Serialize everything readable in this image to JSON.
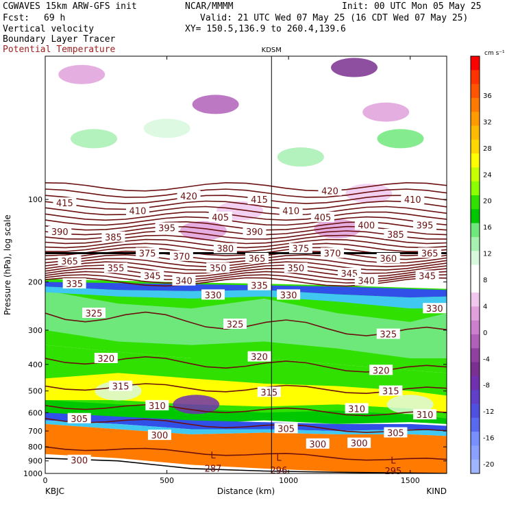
{
  "header": {
    "model": "CGWAVES 15km ARW-GFS init",
    "fcst_label": "Fcst:",
    "fcst_value": "69 h",
    "field1": "Vertical velocity",
    "field2": "Boundary Layer Tracer",
    "field3": "Potential Temperature",
    "org": "NCAR/MMMM",
    "init": "Init: 00 UTC Mon 05 May 25",
    "valid": "Valid: 21 UTC Wed 07 May 25 (16 CDT Wed 07 May 25)",
    "xy": "XY= 150.5,136.9 to 260.4,139.6"
  },
  "colors": {
    "contour": "#6b0f0f",
    "tropopause": "#000000"
  },
  "chart_data": {
    "type": "heatmap",
    "xlabel": "Distance (km)",
    "ylabel": "Pressure (hPa), log scale",
    "x_ticks": [
      0,
      500,
      1000,
      1500
    ],
    "y_ticks": [
      100,
      200,
      300,
      400,
      500,
      600,
      700,
      800,
      900,
      1000
    ],
    "xlim": [
      0,
      1650
    ],
    "ylim_hpa": [
      1000,
      30
    ],
    "y_scale": "log",
    "endpoints": [
      "KBJC",
      "KIND"
    ],
    "station": {
      "name": "KDSM",
      "x_km": 930
    },
    "colorbar": {
      "unit": "cm s⁻¹",
      "labels": [
        "36",
        "32",
        "28",
        "24",
        "20",
        "16",
        "12",
        "8",
        "4",
        "0",
        "-4",
        "-8",
        "-12",
        "-16",
        "-20"
      ],
      "colors": [
        "#ff0000",
        "#ff3300",
        "#ff5500",
        "#ff7a00",
        "#ff9a00",
        "#ffbb00",
        "#ffd700",
        "#ffff00",
        "#c8ff00",
        "#8cff00",
        "#30e000",
        "#00c800",
        "#6ee87a",
        "#a6f0b0",
        "#d8f8dc",
        "#ffffff",
        "#ffffff",
        "#f0c8ee",
        "#e0a0dc",
        "#cc7fcc",
        "#b060b8",
        "#9040a0",
        "#7a3090",
        "#7030b0",
        "#6040c8",
        "#5050e0",
        "#5a6af0",
        "#7890ff",
        "#8ca0ff",
        "#a0b4ff"
      ]
    },
    "theta_labels": [
      {
        "v": "415",
        "x": 80,
        "p": 103
      },
      {
        "v": "420",
        "x": 590,
        "p": 97
      },
      {
        "v": "415",
        "x": 880,
        "p": 100
      },
      {
        "v": "420",
        "x": 1170,
        "p": 93
      },
      {
        "v": "410",
        "x": 1510,
        "p": 100
      },
      {
        "v": "410",
        "x": 380,
        "p": 110
      },
      {
        "v": "405",
        "x": 720,
        "p": 116
      },
      {
        "v": "410",
        "x": 1010,
        "p": 110
      },
      {
        "v": "405",
        "x": 1140,
        "p": 116
      },
      {
        "v": "400",
        "x": 1320,
        "p": 124
      },
      {
        "v": "395",
        "x": 1560,
        "p": 124
      },
      {
        "v": "390",
        "x": 60,
        "p": 131
      },
      {
        "v": "385",
        "x": 280,
        "p": 137
      },
      {
        "v": "395",
        "x": 500,
        "p": 127
      },
      {
        "v": "390",
        "x": 860,
        "p": 131
      },
      {
        "v": "385",
        "x": 1440,
        "p": 134
      },
      {
        "v": "380",
        "x": 740,
        "p": 151
      },
      {
        "v": "375",
        "x": 420,
        "p": 157
      },
      {
        "v": "375",
        "x": 1050,
        "p": 151
      },
      {
        "v": "370",
        "x": 1180,
        "p": 157
      },
      {
        "v": "365",
        "x": 1580,
        "p": 157
      },
      {
        "v": "370",
        "x": 560,
        "p": 161
      },
      {
        "v": "365",
        "x": 100,
        "p": 168
      },
      {
        "v": "365",
        "x": 870,
        "p": 164
      },
      {
        "v": "360",
        "x": 1410,
        "p": 164
      },
      {
        "v": "355",
        "x": 290,
        "p": 178
      },
      {
        "v": "350",
        "x": 710,
        "p": 178
      },
      {
        "v": "350",
        "x": 1030,
        "p": 178
      },
      {
        "v": "345",
        "x": 440,
        "p": 190
      },
      {
        "v": "340",
        "x": 570,
        "p": 198
      },
      {
        "v": "345",
        "x": 1250,
        "p": 186
      },
      {
        "v": "340",
        "x": 1320,
        "p": 198
      },
      {
        "v": "345",
        "x": 1570,
        "p": 190
      },
      {
        "v": "335",
        "x": 120,
        "p": 203
      },
      {
        "v": "335",
        "x": 880,
        "p": 206
      },
      {
        "v": "330",
        "x": 690,
        "p": 223
      },
      {
        "v": "330",
        "x": 1000,
        "p": 223
      },
      {
        "v": "330",
        "x": 1600,
        "p": 250
      },
      {
        "v": "325",
        "x": 200,
        "p": 260
      },
      {
        "v": "325",
        "x": 780,
        "p": 285
      },
      {
        "v": "325",
        "x": 1410,
        "p": 310
      },
      {
        "v": "320",
        "x": 250,
        "p": 380
      },
      {
        "v": "320",
        "x": 880,
        "p": 375
      },
      {
        "v": "320",
        "x": 1380,
        "p": 420
      },
      {
        "v": "315",
        "x": 310,
        "p": 480
      },
      {
        "v": "315",
        "x": 920,
        "p": 505
      },
      {
        "v": "315",
        "x": 1420,
        "p": 500
      },
      {
        "v": "310",
        "x": 460,
        "p": 565
      },
      {
        "v": "310",
        "x": 1280,
        "p": 580
      },
      {
        "v": "310",
        "x": 1560,
        "p": 610
      },
      {
        "v": "305",
        "x": 140,
        "p": 630
      },
      {
        "v": "305",
        "x": 990,
        "p": 685
      },
      {
        "v": "305",
        "x": 1440,
        "p": 710
      },
      {
        "v": "300",
        "x": 470,
        "p": 725
      },
      {
        "v": "300",
        "x": 1120,
        "p": 780
      },
      {
        "v": "300",
        "x": 1290,
        "p": 775
      },
      {
        "v": "300",
        "x": 140,
        "p": 895
      }
    ],
    "annotations": [
      {
        "text": "L",
        "x": 690,
        "p": 880
      },
      {
        "text": "L",
        "x": 960,
        "p": 900
      },
      {
        "text": "L",
        "x": 1430,
        "p": 920
      },
      {
        "text": "287",
        "x": 690,
        "p": 985
      },
      {
        "text": "296",
        "x": 960,
        "p": 1000
      },
      {
        "text": "295",
        "x": 1430,
        "p": 1005
      }
    ]
  }
}
